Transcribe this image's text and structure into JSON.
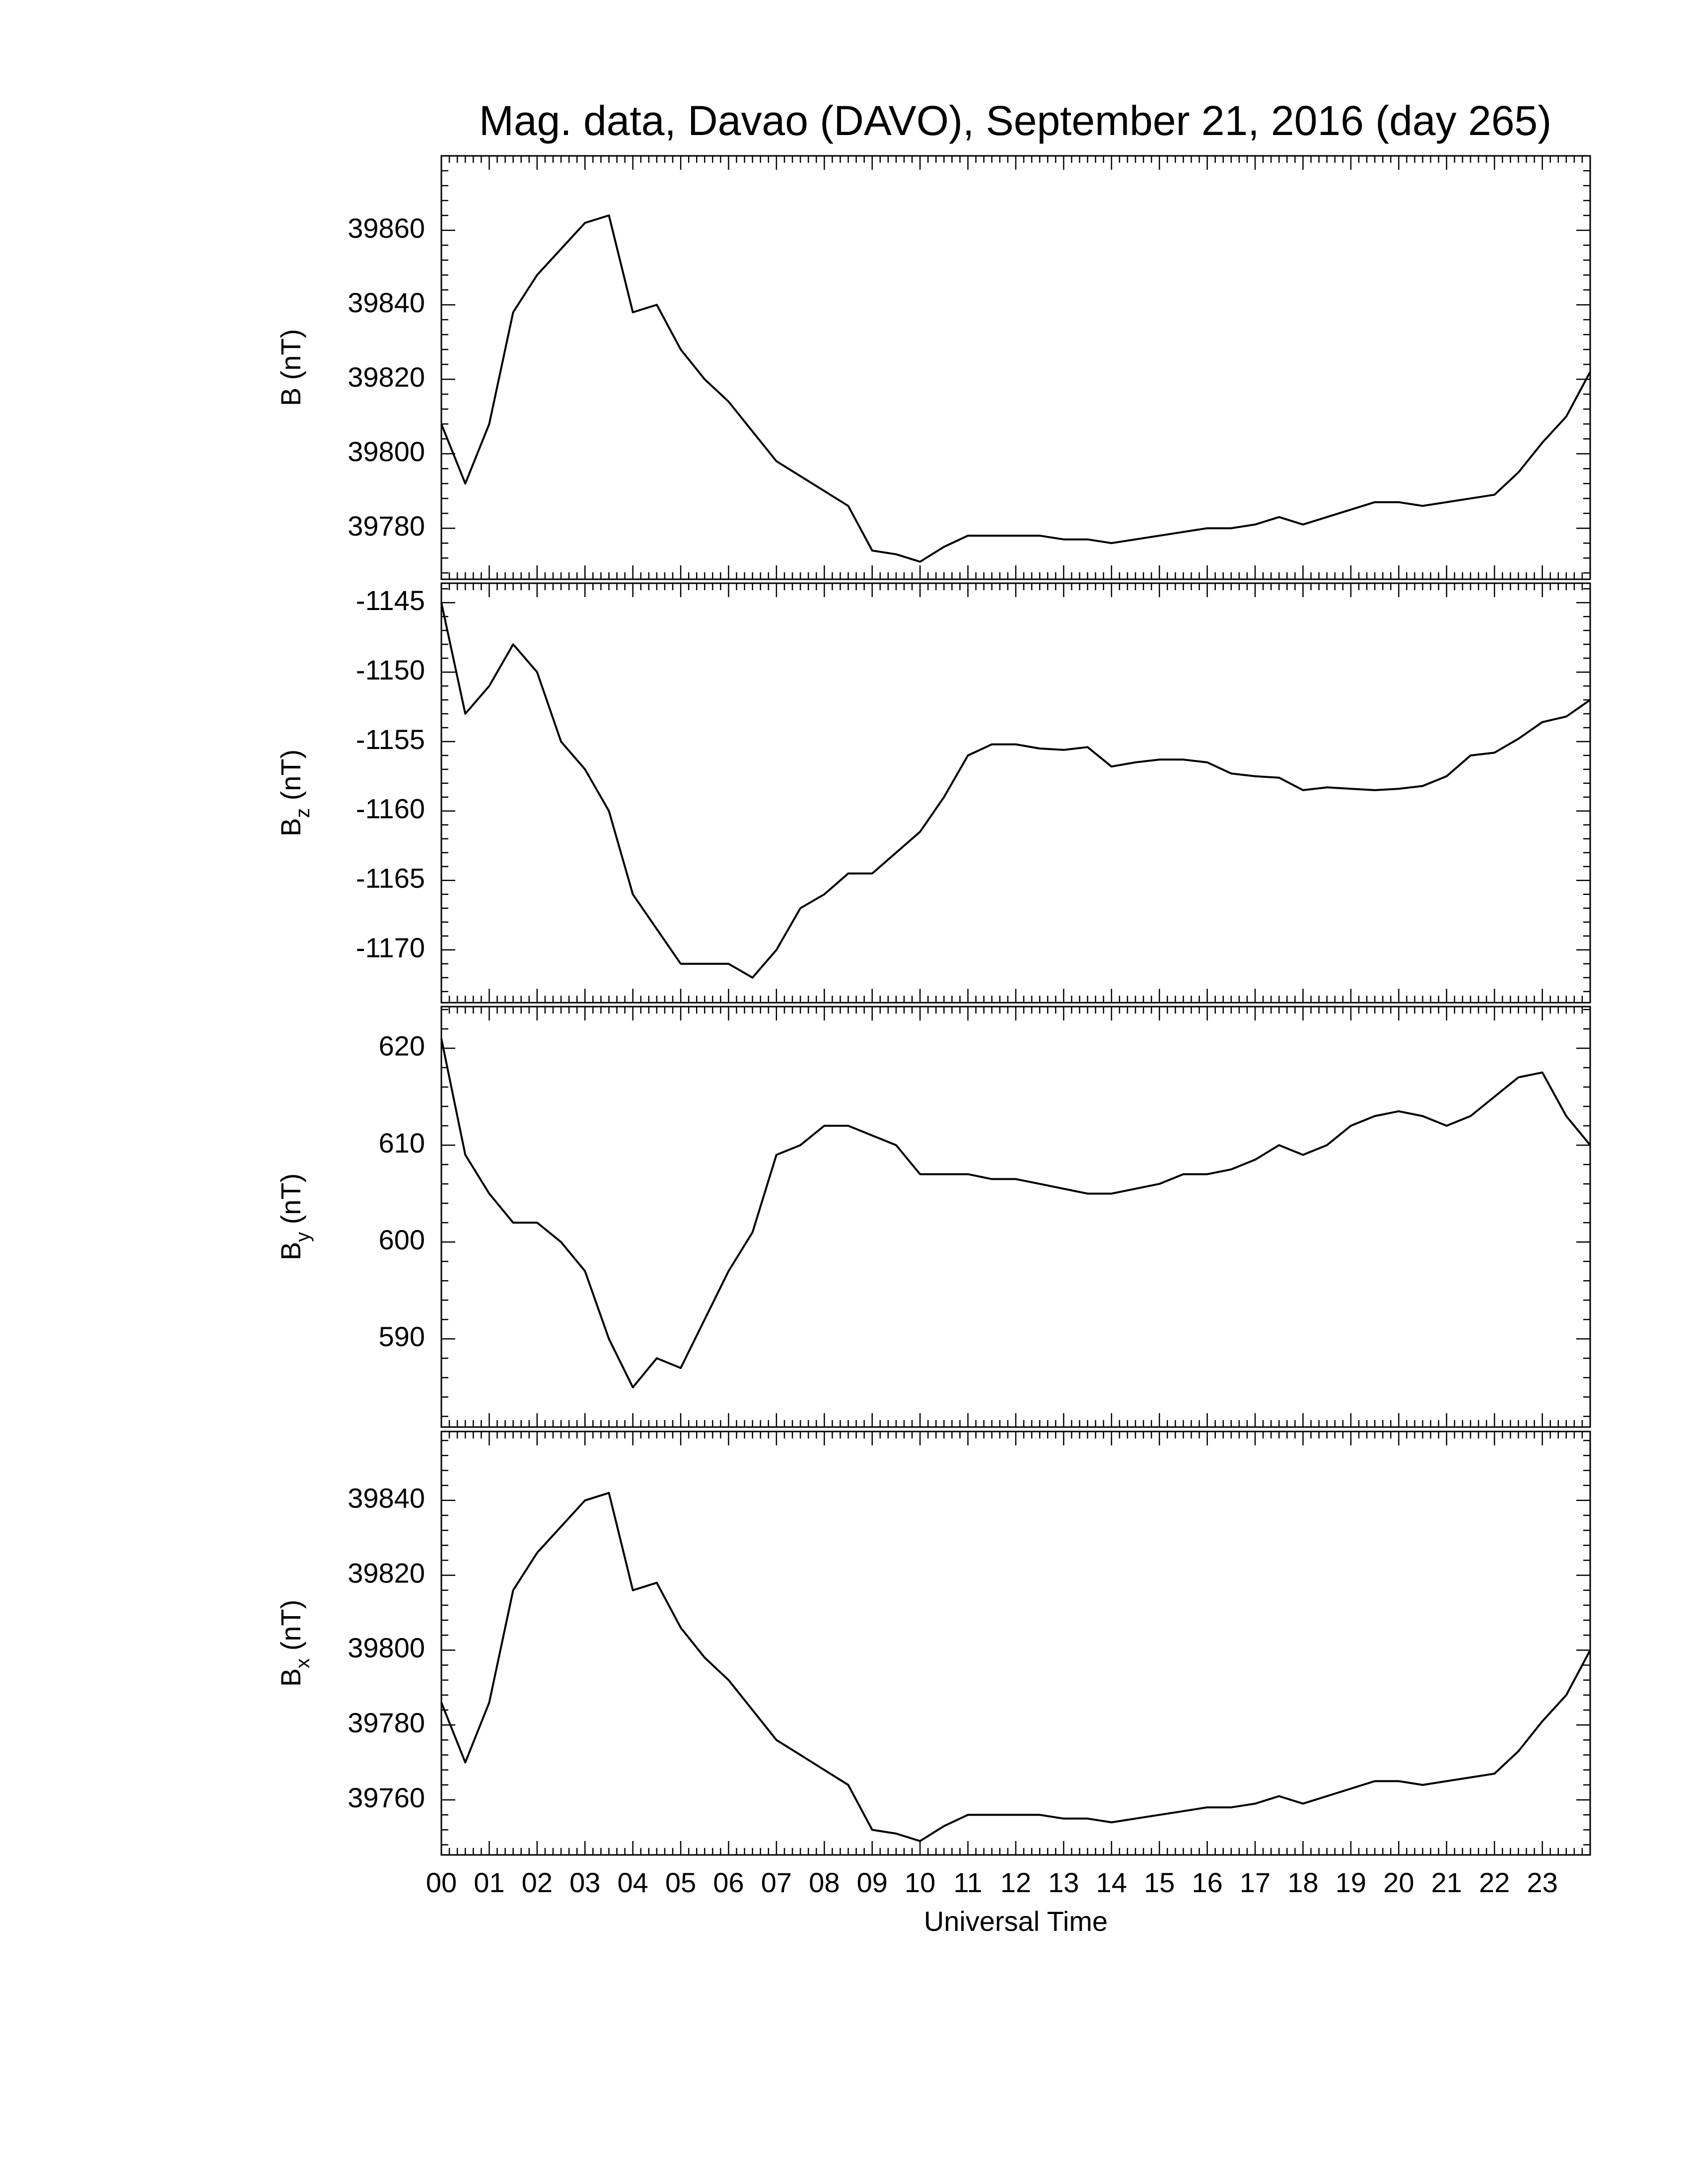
{
  "chart_data": [
    {
      "type": "line",
      "title": "Mag. data, Davao (DAVO), September 21, 2016 (day 265)",
      "ylabel": {
        "symbol": "B",
        "unit": "(nT)"
      },
      "color": "#000000",
      "xlim": [
        0,
        24
      ],
      "ylim": [
        39766.3,
        39880
      ],
      "yticks": [
        39780,
        39800,
        39820,
        39840,
        39860
      ],
      "x": [
        0,
        0.5,
        1,
        1.5,
        2,
        2.5,
        3,
        3.5,
        4,
        4.5,
        5,
        5.5,
        6,
        6.5,
        7,
        7.5,
        8,
        8.5,
        9,
        9.5,
        10,
        10.5,
        11,
        11.5,
        12,
        12.5,
        13,
        13.5,
        14,
        14.5,
        15,
        15.5,
        16,
        16.5,
        17,
        17.5,
        18,
        18.5,
        19,
        19.5,
        20,
        20.5,
        21,
        21.5,
        22,
        22.5,
        23,
        23.5,
        24
      ],
      "values": [
        39808,
        39792,
        39808,
        39838,
        39848,
        39855,
        39862,
        39864,
        39838,
        39840,
        39828,
        39820,
        39814,
        39806,
        39798,
        39794,
        39790,
        39786,
        39774,
        39773,
        39771,
        39775,
        39778,
        39778,
        39778,
        39778,
        39777,
        39777,
        39776,
        39777,
        39778,
        39779,
        39780,
        39780,
        39781,
        39783,
        39781,
        39783,
        39785,
        39787,
        39787,
        39786,
        39787,
        39788,
        39789,
        39795,
        39803,
        39810,
        39822
      ]
    },
    {
      "type": "line",
      "ylabel": {
        "symbol": "B",
        "subscript": "z",
        "unit": "(nT)"
      },
      "color": "#000000",
      "xlim": [
        0,
        24
      ],
      "ylim": [
        -1173.8,
        -1143.6
      ],
      "yticks": [
        -1170,
        -1165,
        -1160,
        -1155,
        -1150,
        -1145
      ],
      "x": [
        0,
        0.5,
        1,
        1.5,
        2,
        2.5,
        3,
        3.5,
        4,
        4.5,
        5,
        5.5,
        6,
        6.5,
        7,
        7.5,
        8,
        8.5,
        9,
        9.5,
        10,
        10.5,
        11,
        11.5,
        12,
        12.5,
        13,
        13.5,
        14,
        14.5,
        15,
        15.5,
        16,
        16.5,
        17,
        17.5,
        18,
        18.5,
        19,
        19.5,
        20,
        20.5,
        21,
        21.5,
        22,
        22.5,
        23,
        23.5,
        24
      ],
      "values": [
        -1145,
        -1153,
        -1151,
        -1148,
        -1150,
        -1155,
        -1157,
        -1160,
        -1166,
        -1168.5,
        -1171,
        -1171,
        -1171,
        -1172,
        -1170,
        -1167,
        -1166,
        -1164.5,
        -1164.5,
        -1163,
        -1161.5,
        -1159,
        -1156,
        -1155.2,
        -1155.2,
        -1155.5,
        -1155.6,
        -1155.4,
        -1156.8,
        -1156.5,
        -1156.3,
        -1156.3,
        -1156.5,
        -1157.3,
        -1157.5,
        -1157.6,
        -1158.5,
        -1158.3,
        -1158.4,
        -1158.5,
        -1158.4,
        -1158.2,
        -1157.5,
        -1156,
        -1155.8,
        -1154.8,
        -1153.6,
        -1153.2,
        -1152
      ]
    },
    {
      "type": "line",
      "ylabel": {
        "symbol": "B",
        "subscript": "y",
        "unit": "(nT)"
      },
      "color": "#000000",
      "xlim": [
        0,
        24
      ],
      "ylim": [
        580.9,
        624.3
      ],
      "yticks": [
        590,
        600,
        610,
        620
      ],
      "x": [
        0,
        0.5,
        1,
        1.5,
        2,
        2.5,
        3,
        3.5,
        4,
        4.5,
        5,
        5.5,
        6,
        6.5,
        7,
        7.5,
        8,
        8.5,
        9,
        9.5,
        10,
        10.5,
        11,
        11.5,
        12,
        12.5,
        13,
        13.5,
        14,
        14.5,
        15,
        15.5,
        16,
        16.5,
        17,
        17.5,
        18,
        18.5,
        19,
        19.5,
        20,
        20.5,
        21,
        21.5,
        22,
        22.5,
        23,
        23.5,
        24
      ],
      "values": [
        621,
        609,
        605,
        602,
        602,
        600,
        597,
        590,
        585,
        588,
        587,
        592,
        597,
        601,
        609,
        610,
        612,
        612,
        611,
        610,
        607,
        607,
        607,
        606.5,
        606.5,
        606,
        605.5,
        605,
        605,
        605.5,
        606,
        607,
        607,
        607.5,
        608.5,
        610,
        609,
        610,
        612,
        613,
        613.5,
        613,
        612,
        613,
        615,
        617,
        617.5,
        613,
        610
      ]
    },
    {
      "type": "line",
      "ylabel": {
        "symbol": "B",
        "subscript": "x",
        "unit": "(nT)"
      },
      "color": "#000000",
      "xlabel": "Universal Time",
      "xlim": [
        0,
        24
      ],
      "ylim": [
        39745.3,
        39858.4
      ],
      "yticks": [
        39760,
        39780,
        39800,
        39820,
        39840
      ],
      "xticks": [
        {
          "value": 0,
          "label": "00"
        },
        {
          "value": 1,
          "label": "01"
        },
        {
          "value": 2,
          "label": "02"
        },
        {
          "value": 3,
          "label": "03"
        },
        {
          "value": 4,
          "label": "04"
        },
        {
          "value": 5,
          "label": "05"
        },
        {
          "value": 6,
          "label": "06"
        },
        {
          "value": 7,
          "label": "07"
        },
        {
          "value": 8,
          "label": "08"
        },
        {
          "value": 9,
          "label": "09"
        },
        {
          "value": 10,
          "label": "10"
        },
        {
          "value": 11,
          "label": "11"
        },
        {
          "value": 12,
          "label": "12"
        },
        {
          "value": 13,
          "label": "13"
        },
        {
          "value": 14,
          "label": "14"
        },
        {
          "value": 15,
          "label": "15"
        },
        {
          "value": 16,
          "label": "16"
        },
        {
          "value": 17,
          "label": "17"
        },
        {
          "value": 18,
          "label": "18"
        },
        {
          "value": 19,
          "label": "19"
        },
        {
          "value": 20,
          "label": "20"
        },
        {
          "value": 21,
          "label": "21"
        },
        {
          "value": 22,
          "label": "22"
        },
        {
          "value": 23,
          "label": "23"
        }
      ],
      "x": [
        0,
        0.5,
        1,
        1.5,
        2,
        2.5,
        3,
        3.5,
        4,
        4.5,
        5,
        5.5,
        6,
        6.5,
        7,
        7.5,
        8,
        8.5,
        9,
        9.5,
        10,
        10.5,
        11,
        11.5,
        12,
        12.5,
        13,
        13.5,
        14,
        14.5,
        15,
        15.5,
        16,
        16.5,
        17,
        17.5,
        18,
        18.5,
        19,
        19.5,
        20,
        20.5,
        21,
        21.5,
        22,
        22.5,
        23,
        23.5,
        24
      ],
      "values": [
        39786,
        39770,
        39786,
        39816,
        39826,
        39833,
        39840,
        39842,
        39816,
        39818,
        39806,
        39798,
        39792,
        39784,
        39776,
        39772,
        39768,
        39764,
        39752,
        39751,
        39749,
        39753,
        39756,
        39756,
        39756,
        39756,
        39755,
        39755,
        39754,
        39755,
        39756,
        39757,
        39758,
        39758,
        39759,
        39761,
        39759,
        39761,
        39763,
        39765,
        39765,
        39764,
        39765,
        39766,
        39767,
        39773,
        39781,
        39788,
        39800
      ]
    }
  ]
}
